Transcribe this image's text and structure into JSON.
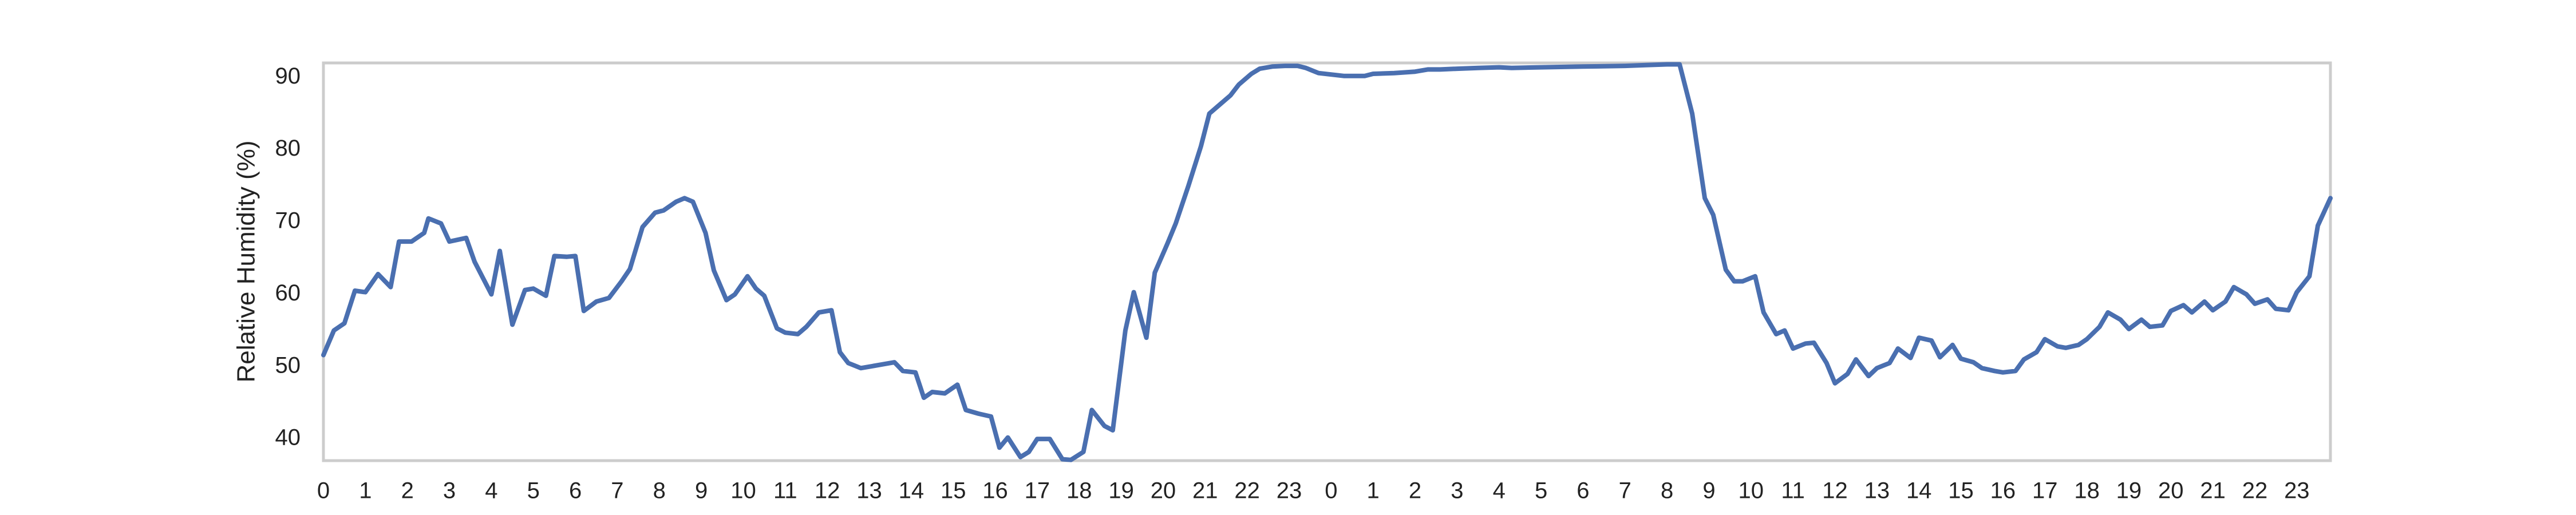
{
  "chart_data": {
    "type": "line",
    "ylabel": "Relative Humidity (%)",
    "color": "#4a6fb0",
    "x": [
      0,
      0.25,
      0.5,
      0.75,
      1.0,
      1.3,
      1.6,
      1.8,
      2.1,
      2.4,
      2.5,
      2.8,
      3.0,
      3.4,
      3.6,
      4.0,
      4.2,
      4.5,
      4.8,
      5.0,
      5.3,
      5.5,
      5.8,
      6.0,
      6.2,
      6.5,
      6.8,
      7.1,
      7.3,
      7.6,
      7.9,
      8.1,
      8.4,
      8.6,
      8.8,
      9.1,
      9.3,
      9.6,
      9.8,
      10.1,
      10.3,
      10.5,
      10.8,
      11.0,
      11.3,
      11.5,
      11.8,
      12.1,
      12.3,
      12.5,
      12.8,
      13.1,
      13.3,
      13.6,
      13.8,
      14.1,
      14.3,
      14.5,
      14.8,
      15.1,
      15.3,
      15.6,
      15.9,
      16.1,
      16.3,
      16.6,
      16.8,
      17.0,
      17.3,
      17.6,
      17.8,
      18.1,
      18.3,
      18.6,
      18.8,
      19.1,
      19.3,
      19.6,
      19.8,
      20.1,
      20.3,
      20.6,
      20.9,
      21.1,
      21.3,
      21.6,
      21.8,
      22.1,
      22.3,
      22.6,
      22.9,
      23.2,
      23.4,
      23.7,
      24.0,
      24.3,
      24.6,
      24.8,
      25.0,
      25.5,
      26.0,
      26.3,
      26.6,
      27.0,
      27.5,
      28.0,
      28.3,
      29.0,
      30.0,
      31.0,
      31.5,
      32.0,
      32.3,
      32.6,
      32.9,
      33.1,
      33.4,
      33.6,
      33.8,
      34.1,
      34.3,
      34.6,
      34.8,
      35.0,
      35.3,
      35.5,
      35.8,
      36.0,
      36.3,
      36.5,
      36.8,
      37.0,
      37.3,
      37.5,
      37.8,
      38.0,
      38.3,
      38.5,
      38.8,
      39.0,
      39.3,
      39.5,
      39.8,
      40.0,
      40.3,
      40.5,
      40.8,
      41.0,
      41.3,
      41.5,
      41.8,
      42.0,
      42.3,
      42.5,
      42.8,
      43.0,
      43.3,
      43.5,
      43.8,
      44.0,
      44.3,
      44.5,
      44.8,
      45.0,
      45.3,
      45.5,
      45.8,
      46.0,
      46.3,
      46.5,
      46.8,
      47.0,
      47.3,
      47.5,
      47.8
    ],
    "values": [
      51.6,
      55,
      56,
      60.5,
      60.3,
      62.8,
      61,
      67.3,
      67.3,
      68.5,
      70.5,
      69.8,
      67.3,
      67.8,
      64.5,
      60,
      66,
      55.8,
      60.6,
      60.8,
      59.8,
      65.3,
      65.2,
      65.3,
      57.7,
      59,
      59.5,
      61.8,
      63.5,
      69.3,
      71.3,
      71.6,
      72.8,
      73.3,
      72.8,
      68.5,
      63.3,
      59.2,
      60,
      62.5,
      60.8,
      59.8,
      55.3,
      54.7,
      54.5,
      55.5,
      57.5,
      57.8,
      52,
      50.5,
      49.8,
      50.1,
      50.3,
      50.6,
      49.4,
      49.2,
      45.7,
      46.5,
      46.3,
      47.5,
      44,
      43.5,
      43.1,
      38.8,
      40.2,
      37.5,
      38.2,
      40,
      40,
      37.2,
      37.1,
      38.2,
      44,
      41.8,
      41.2,
      55,
      60.3,
      54,
      63,
      67,
      69.8,
      75,
      80.5,
      85,
      86,
      87.5,
      89,
      90.5,
      91.2,
      91.5,
      91.6,
      91.6,
      91.3,
      90.6,
      90.4,
      90.2,
      90.2,
      90.2,
      90.5,
      90.6,
      90.8,
      91.1,
      91.1,
      91.2,
      91.3,
      91.4,
      91.3,
      91.4,
      91.5,
      91.6,
      91.7,
      91.8,
      91.8,
      85,
      73.3,
      71,
      63.4,
      61.8,
      61.8,
      62.5,
      57.5,
      54.5,
      55,
      52.5,
      53.2,
      53.3,
      50.5,
      47.7,
      49,
      51,
      48.7,
      49.8,
      50.5,
      52.5,
      51.2,
      54,
      53.6,
      51.3,
      53,
      51.1,
      50.6,
      49.8,
      49.4,
      49.2,
      49.4,
      51,
      52,
      53.8,
      52.8,
      52.6,
      53,
      53.8,
      55.5,
      57.5,
      56.5,
      55.2,
      56.5,
      55.5,
      55.7,
      57.7,
      58.5,
      57.5,
      59,
      57.8,
      59,
      61,
      60,
      58.7,
      59.3,
      58,
      57.8,
      60.3,
      62.5,
      69.5,
      73.3
    ],
    "xlim": [
      0,
      47.8
    ],
    "ylim": [
      37,
      92
    ],
    "xticks": [
      0,
      1,
      2,
      3,
      4,
      5,
      6,
      7,
      8,
      9,
      10,
      11,
      12,
      13,
      14,
      15,
      16,
      17,
      18,
      19,
      20,
      21,
      22,
      23,
      {
        "value": 24,
        "label": "0"
      },
      {
        "value": 25,
        "label": "1"
      },
      {
        "value": 26,
        "label": "2"
      },
      {
        "value": 27,
        "label": "3"
      },
      {
        "value": 28,
        "label": "4"
      },
      {
        "value": 29,
        "label": "5"
      },
      {
        "value": 30,
        "label": "6"
      },
      {
        "value": 31,
        "label": "7"
      },
      {
        "value": 32,
        "label": "8"
      },
      {
        "value": 33,
        "label": "9"
      },
      {
        "value": 34,
        "label": "10"
      },
      {
        "value": 35,
        "label": "11"
      },
      {
        "value": 36,
        "label": "12"
      },
      {
        "value": 37,
        "label": "13"
      },
      {
        "value": 38,
        "label": "14"
      },
      {
        "value": 39,
        "label": "15"
      },
      {
        "value": 40,
        "label": "16"
      },
      {
        "value": 41,
        "label": "17"
      },
      {
        "value": 42,
        "label": "18"
      },
      {
        "value": 43,
        "label": "19"
      },
      {
        "value": 44,
        "label": "20"
      },
      {
        "value": 45,
        "label": "21"
      },
      {
        "value": 46,
        "label": "22"
      },
      {
        "value": 47,
        "label": "23"
      }
    ],
    "yticks": [
      40,
      50,
      60,
      70,
      80,
      90
    ],
    "grid": false
  }
}
